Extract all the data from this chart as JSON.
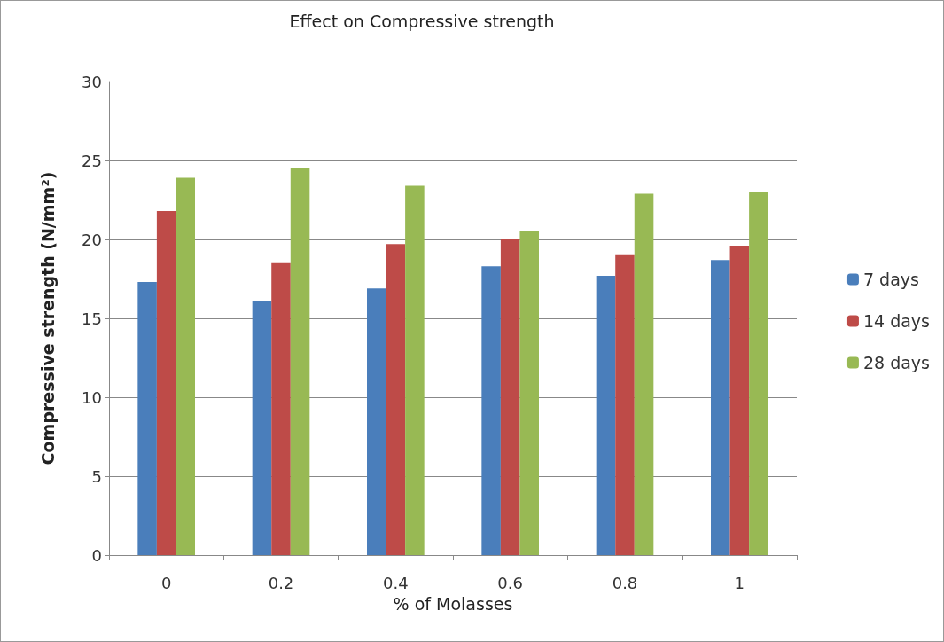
{
  "chart_data": {
    "type": "bar",
    "title": "Effect on Compressive strength",
    "xlabel": "% of Molasses",
    "ylabel": "Compressive strength (N/mm²)",
    "categories": [
      "0",
      "0.2",
      "0.4",
      "0.6",
      "0.8",
      "1"
    ],
    "series": [
      {
        "name": "7 days",
        "color": "#4a7ebb",
        "values": [
          17.3,
          16.1,
          16.9,
          18.3,
          17.7,
          18.7
        ]
      },
      {
        "name": "14 days",
        "color": "#be4b48",
        "values": [
          21.8,
          18.5,
          19.7,
          20.0,
          19.0,
          19.6
        ]
      },
      {
        "name": "28 days",
        "color": "#98b954",
        "values": [
          23.9,
          24.5,
          23.4,
          20.5,
          22.9,
          23.0
        ]
      }
    ],
    "ylim": [
      0,
      30
    ],
    "yticks": [
      0,
      5,
      10,
      15,
      20,
      25,
      30
    ],
    "grid": "y",
    "legend": "right"
  }
}
